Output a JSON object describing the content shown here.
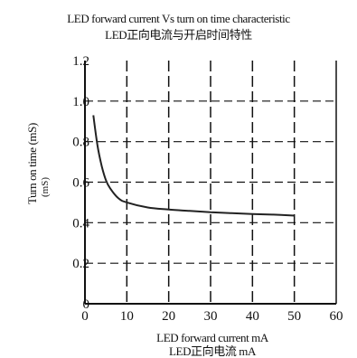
{
  "chart_data": {
    "type": "line",
    "title": "LED forward current Vs turn on time characteristic",
    "subtitle": "LED正向电流与开启时间特性",
    "xlabel": "LED forward current mA",
    "xlabel_cn": "LED正向电流 mA",
    "ylabel": "Turn on time (mS)",
    "ylabel_sub": "(mS)",
    "x_ticks": [
      "0",
      "10",
      "20",
      "30",
      "40",
      "50",
      "60"
    ],
    "y_ticks": [
      "0",
      "0.2",
      "0.4",
      "0.6",
      "0.8",
      "1.0",
      "1.2"
    ],
    "xlim": [
      0,
      60
    ],
    "ylim": [
      0,
      1.2
    ],
    "grid": "vertical-dashed-and-horizontal-dashed",
    "series": [
      {
        "x": [
          2,
          3,
          4,
          5,
          6,
          8,
          10,
          15,
          20,
          25,
          30,
          35,
          40,
          45,
          50
        ],
        "y": [
          0.93,
          0.78,
          0.68,
          0.61,
          0.57,
          0.52,
          0.5,
          0.475,
          0.465,
          0.458,
          0.452,
          0.447,
          0.443,
          0.44,
          0.435
        ]
      }
    ]
  }
}
